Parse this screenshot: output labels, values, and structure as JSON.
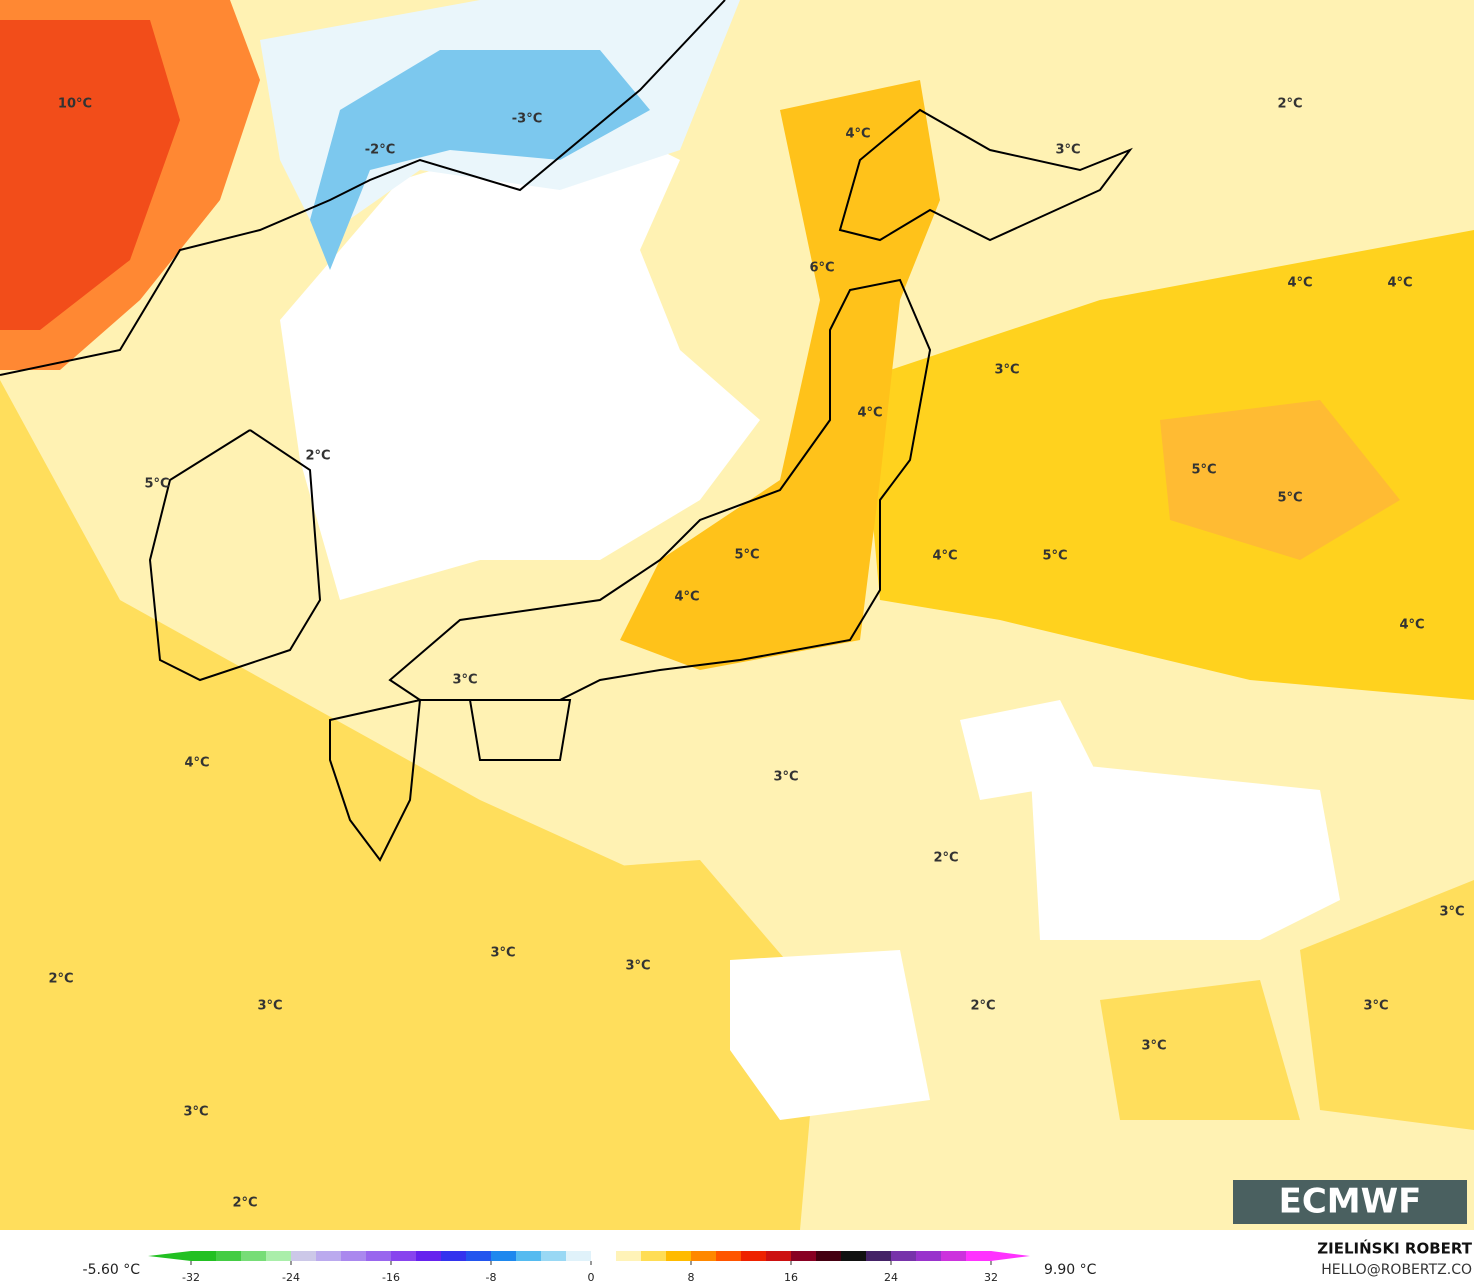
{
  "map_labels": [
    "10°C",
    "-2°C",
    "-3°C",
    "4°C",
    "3°C",
    "2°C",
    "6°C",
    "4°C",
    "4°C",
    "3°C",
    "4°C",
    "2°C",
    "5°C",
    "5°C",
    "5°C",
    "4°C",
    "5°C",
    "5°C",
    "4°C",
    "4°C",
    "3°C",
    "4°C",
    "3°C",
    "2°C",
    "3°C",
    "3°C",
    "3°C",
    "2°C",
    "3°C",
    "2°C",
    "3°C",
    "3°C",
    "3°C",
    "2°C"
  ],
  "colorbar": {
    "min_label": "-5.60 °C",
    "max_label": "9.90 °C",
    "range": [
      -32,
      32
    ],
    "ticks": [
      -32,
      -24,
      -16,
      -8,
      0,
      8,
      16,
      24,
      32
    ],
    "colors": [
      "#22c022",
      "#44cc44",
      "#77dd77",
      "#aaeeaa",
      "#ccc8e8",
      "#bbaaee",
      "#aa88ee",
      "#9966ee",
      "#8844ee",
      "#6622ee",
      "#3333ee",
      "#2255ee",
      "#1e88ee",
      "#55bbf0",
      "#99d8f4",
      "#e0f2fa",
      "#ffffff",
      "#fff3b8",
      "#ffdd55",
      "#ffbb00",
      "#ff8800",
      "#ff5500",
      "#ee2200",
      "#cc1111",
      "#880022",
      "#440011",
      "#111111",
      "#442266",
      "#7733aa",
      "#9933cc",
      "#cc33dd",
      "#ff33ff"
    ]
  },
  "credit": {
    "logo": "ECMWF",
    "author": "ZIELIŃSKI ROBERT",
    "email": "HELLO@ROBERTZ.CO"
  }
}
